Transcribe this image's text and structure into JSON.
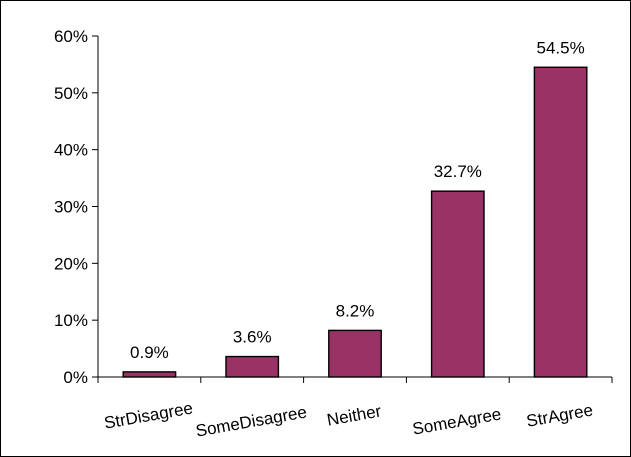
{
  "chart_data": {
    "type": "bar",
    "title": "",
    "xlabel": "",
    "ylabel": "",
    "categories": [
      "StrDisagree",
      "SomeDisagree",
      "Neither",
      "SomeAgree",
      "StrAgree"
    ],
    "values": [
      0.9,
      3.6,
      8.2,
      32.7,
      54.5
    ],
    "data_labels": [
      "0.9%",
      "3.6%",
      "8.2%",
      "32.7%",
      "54.5%"
    ],
    "ylim": [
      0,
      60
    ],
    "y_ticks": [
      0,
      10,
      20,
      30,
      40,
      50,
      60
    ],
    "y_tick_labels": [
      "0%",
      "10%",
      "20%",
      "30%",
      "40%",
      "50%",
      "60%"
    ],
    "grid": false,
    "legend": false,
    "bar_color": "#993366",
    "bar_edge_color": "#000000"
  }
}
